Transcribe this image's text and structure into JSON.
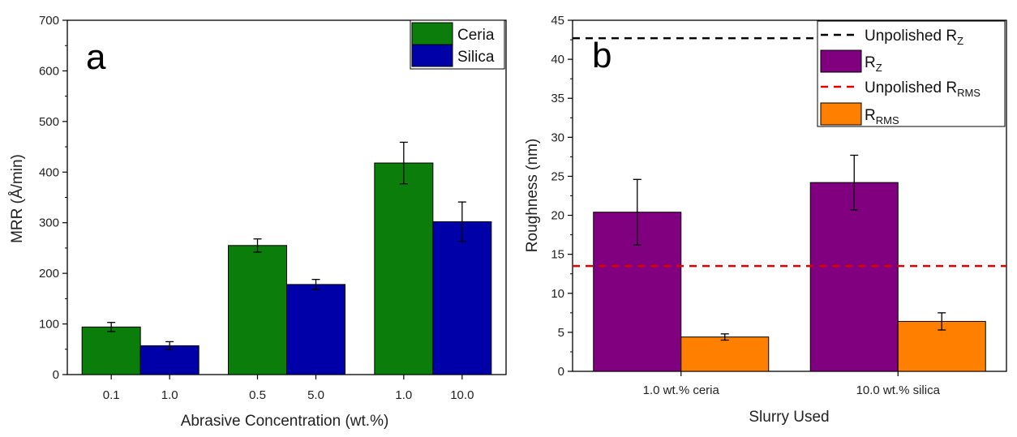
{
  "chart_data": [
    {
      "type": "bar",
      "panel_label": "a",
      "xlabel": "Abrasive Concentration (wt.%)",
      "ylabel": "MRR (Å/min)",
      "ylim": [
        0,
        700
      ],
      "yticks": [
        0,
        100,
        200,
        300,
        400,
        500,
        600,
        700
      ],
      "groups": [
        {
          "bars": [
            {
              "series": "Ceria",
              "label": "0.1",
              "value": 94,
              "error": 9
            },
            {
              "series": "Silica",
              "label": "1.0",
              "value": 57,
              "error": 8
            }
          ]
        },
        {
          "bars": [
            {
              "series": "Ceria",
              "label": "0.5",
              "value": 255,
              "error": 13
            },
            {
              "series": "Silica",
              "label": "5.0",
              "value": 178,
              "error": 10
            }
          ]
        },
        {
          "bars": [
            {
              "series": "Ceria",
              "label": "1.0",
              "value": 418,
              "error": 41
            },
            {
              "series": "Silica",
              "label": "10.0",
              "value": 302,
              "error": 39
            }
          ]
        }
      ],
      "legend": [
        {
          "name": "Ceria",
          "color": "#0a7d0a"
        },
        {
          "name": "Silica",
          "color": "#0000a8"
        }
      ],
      "legend_position": "top-right",
      "grid": false
    },
    {
      "type": "bar",
      "panel_label": "b",
      "xlabel": "Slurry Used",
      "ylabel": "Roughness (nm)",
      "ylim": [
        0,
        45
      ],
      "yticks": [
        0,
        5,
        10,
        15,
        20,
        25,
        30,
        35,
        40,
        45
      ],
      "categories": [
        "1.0 wt.% ceria",
        "10.0 wt.% silica"
      ],
      "series": [
        {
          "name": "R",
          "sub": "Z",
          "color": "#800080",
          "values": [
            20.4,
            24.2
          ],
          "errors": [
            4.2,
            3.5
          ]
        },
        {
          "name": "R",
          "sub": "RMS",
          "color": "#ff8000",
          "values": [
            4.4,
            6.4
          ],
          "errors": [
            0.4,
            1.1
          ]
        }
      ],
      "reference_lines": [
        {
          "name": "Unpolished R",
          "sub": "Z",
          "value": 42.7,
          "color": "#000000"
        },
        {
          "name": "Unpolished R",
          "sub": "RMS",
          "value": 13.5,
          "color": "#e00000"
        }
      ],
      "legend_position": "top-right",
      "grid": false
    }
  ]
}
